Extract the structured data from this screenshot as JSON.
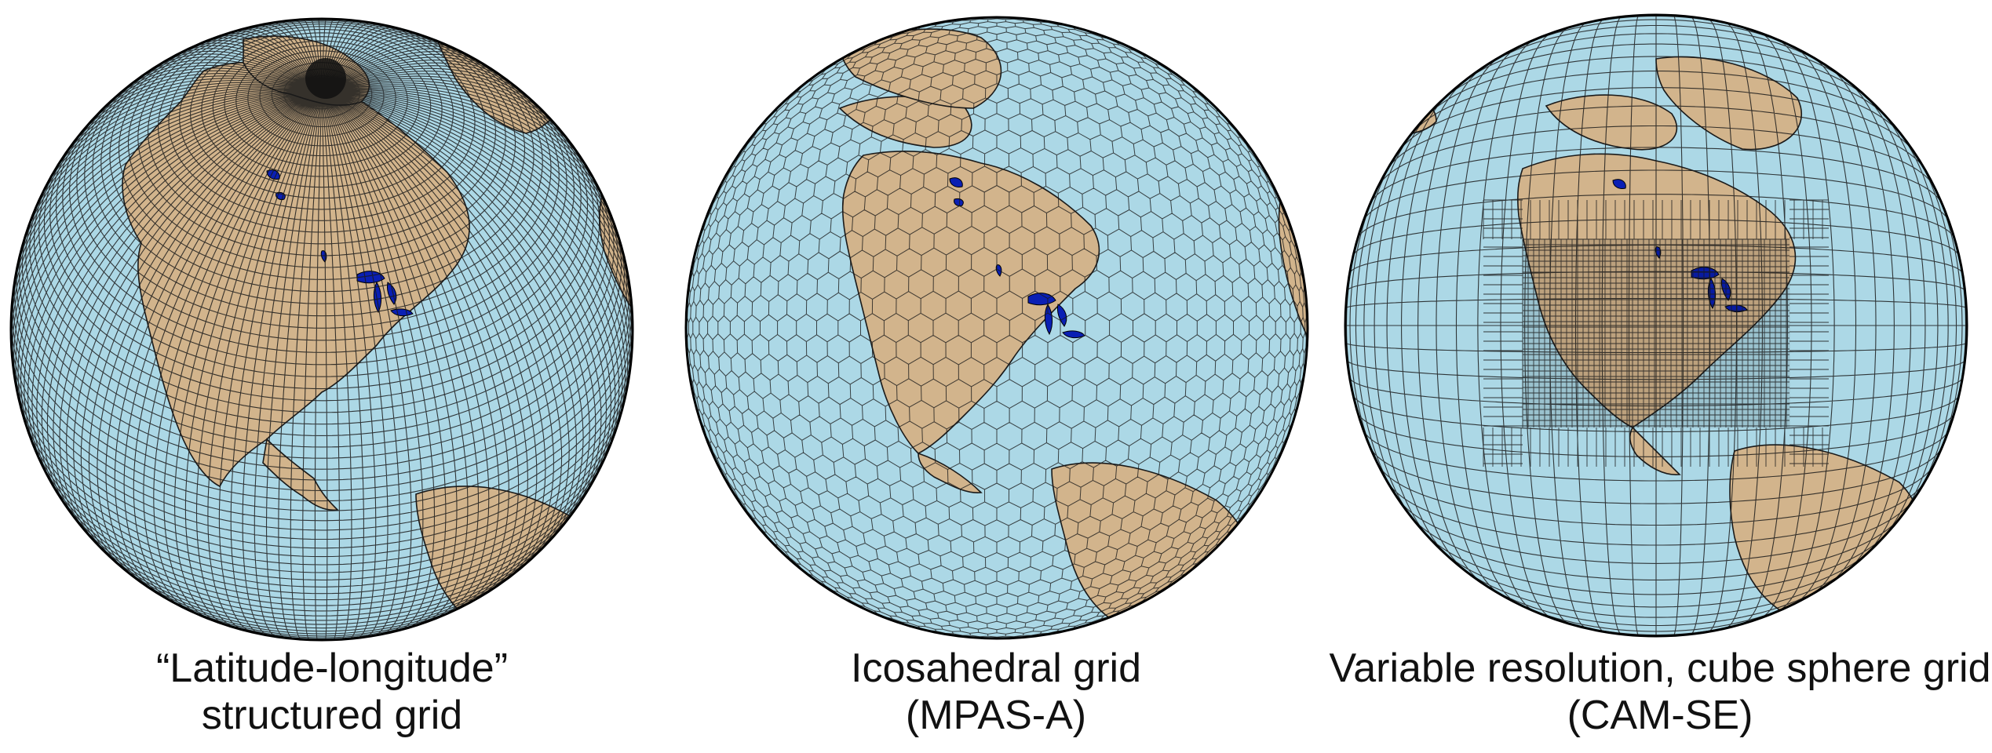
{
  "colors": {
    "ocean": "#acd8e6",
    "land": "#d2b48c",
    "lakes": "#0a1fb4",
    "grid_lines": "#1a1a1a",
    "outline": "#000000"
  },
  "panels": [
    {
      "grid_type": "lat-lon",
      "caption_line1": "“Latitude-longitude”",
      "caption_line2": "structured grid"
    },
    {
      "grid_type": "icosahedral",
      "caption_line1": "Icosahedral grid",
      "caption_line2": "(MPAS-A)"
    },
    {
      "grid_type": "cube-sphere-variable",
      "caption_line1": "Variable resolution, cube sphere grid",
      "caption_line2": "(CAM-SE)"
    }
  ]
}
